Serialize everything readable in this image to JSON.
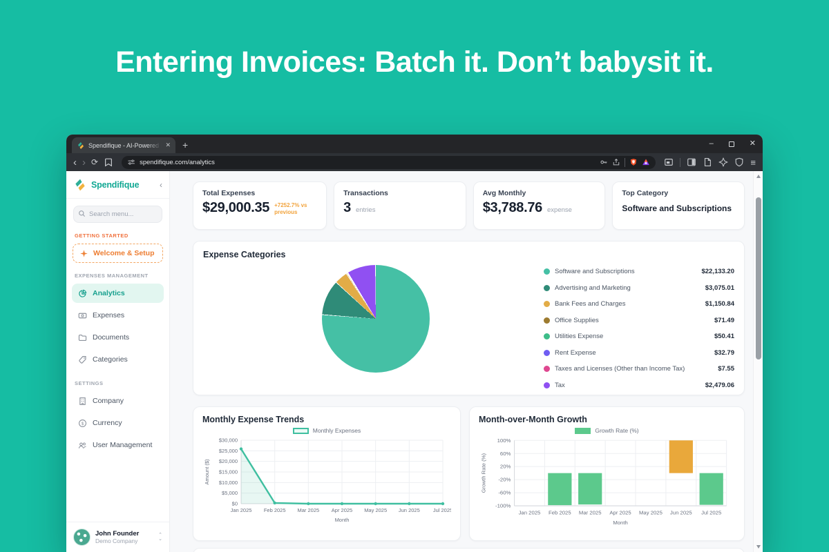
{
  "page": {
    "background_color": "#16bda3",
    "headline": "Entering Invoices: Batch it. Don’t babysit it."
  },
  "browser": {
    "tab_title": "Spendifique - AI-Powered Busin",
    "url": "spendifique.com/analytics",
    "icons": {
      "back": "‹",
      "forward": "›",
      "reload": "⟳",
      "new_tab": "+",
      "tab_close": "✕",
      "minimize": "–",
      "close": "✕",
      "menu": "≡"
    }
  },
  "sidebar": {
    "logo_text": "Spendifique",
    "collapse": "‹",
    "search_placeholder": "Search menu...",
    "sections": {
      "getting_started": "GETTING STARTED",
      "expenses_management": "EXPENSES MANAGEMENT",
      "settings": "SETTINGS"
    },
    "welcome_button": "Welcome & Setup",
    "items": {
      "analytics": "Analytics",
      "expenses": "Expenses",
      "documents": "Documents",
      "categories": "Categories",
      "company": "Company",
      "currency": "Currency",
      "user_management": "User Management"
    },
    "user": {
      "name": "John Founder",
      "company": "Demo Company",
      "chevron_up": "⌃",
      "chevron_down": "⌄"
    }
  },
  "stats": [
    {
      "label": "Total Expenses",
      "value": "$29,000.35",
      "delta": "+7252.7% vs previous",
      "delta_color": "#f2a33c"
    },
    {
      "label": "Transactions",
      "value": "3",
      "unit": "entries"
    },
    {
      "label": "Avg Monthly",
      "value": "$3,788.76",
      "unit": "expense"
    },
    {
      "label": "Top Category",
      "value": "Software and Subscriptions"
    }
  ],
  "chart_data": [
    {
      "type": "pie",
      "title": "Expense Categories",
      "legend_position": "right",
      "total": 29000.35,
      "slices": [
        {
          "label": "Software and Subscriptions",
          "value": 22133.2,
          "display": "$22,133.20",
          "color": "#45c0a5"
        },
        {
          "label": "Advertising and Marketing",
          "value": 3075.01,
          "display": "$3,075.01",
          "color": "#2f8b78"
        },
        {
          "label": "Bank Fees and Charges",
          "value": 1150.84,
          "display": "$1,150.84",
          "color": "#e2ac47"
        },
        {
          "label": "Office Supplies",
          "value": 71.49,
          "display": "$71.49",
          "color": "#9d7b30"
        },
        {
          "label": "Utilities Expense",
          "value": 50.41,
          "display": "$50.41",
          "color": "#3dbd89"
        },
        {
          "label": "Rent Expense",
          "value": 32.79,
          "display": "$32.79",
          "color": "#6f5df2"
        },
        {
          "label": "Taxes and Licenses (Other than Income Tax)",
          "value": 7.55,
          "display": "$7.55",
          "color": "#df4890"
        },
        {
          "label": "Tax",
          "value": 2479.06,
          "display": "$2,479.06",
          "color": "#9050f2"
        }
      ]
    },
    {
      "type": "line",
      "title": "Monthly Expense Trends",
      "legend": "Monthly Expenses",
      "xlabel": "Month",
      "ylabel": "Amount ($)",
      "x": [
        "Jan 2025",
        "Feb 2025",
        "Mar 2025",
        "Apr 2025",
        "May 2025",
        "Jun 2025",
        "Jul 2025"
      ],
      "values": [
        25900,
        350,
        0,
        0,
        0,
        0,
        0
      ],
      "ylim": [
        0,
        30000
      ],
      "yticks": [
        0,
        5000,
        10000,
        15000,
        20000,
        25000,
        30000
      ],
      "ytick_labels": [
        "$0",
        "$5,000",
        "$10,000",
        "$15,000",
        "$20,000",
        "$25,000",
        "$30,000"
      ],
      "color": "#3fbfa0",
      "fill_opacity": 0.12,
      "grid": true,
      "legend_position": "top"
    },
    {
      "type": "bar",
      "title": "Month-over-Month Growth",
      "legend": "Growth Rate (%)",
      "xlabel": "Month",
      "ylabel": "Growth Rate (%)",
      "x": [
        "Jan 2025",
        "Feb 2025",
        "Mar 2025",
        "Apr 2025",
        "May 2025",
        "Jun 2025",
        "Jul 2025"
      ],
      "values": [
        0,
        -98,
        -96,
        0,
        0,
        100,
        -97
      ],
      "ylim": [
        -100,
        100
      ],
      "yticks": [
        -100,
        -60,
        -20,
        20,
        60,
        100
      ],
      "ytick_labels": [
        "-100%",
        "-60%",
        "-20%",
        "20%",
        "60%",
        "100%"
      ],
      "bar_color": "#5cc98c",
      "highlight_index": 5,
      "highlight_color": "#e9a83b",
      "grid": true,
      "legend_position": "top"
    }
  ]
}
